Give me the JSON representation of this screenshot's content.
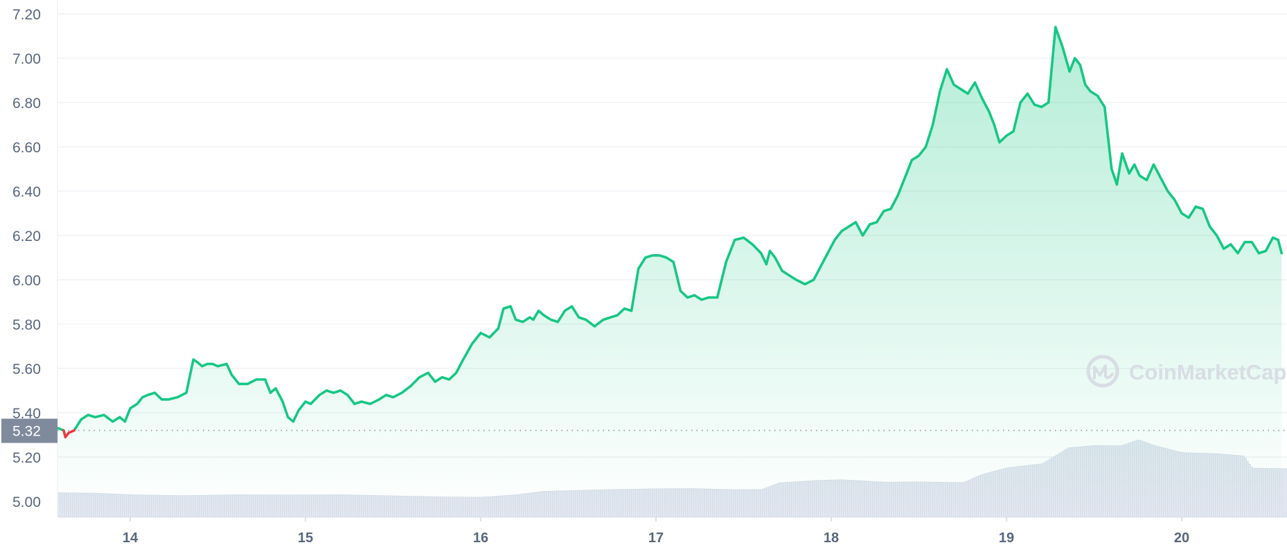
{
  "watermark": {
    "text": "CoinMarketCap",
    "icon": "coinmarketcap-logo-icon"
  },
  "colors": {
    "up": "#16c784",
    "down": "#ea3943",
    "area_top": "#16c784",
    "grid": "#eff2f5",
    "axis_text": "#58667e",
    "volume": "#e7ebf3"
  },
  "chart_data": {
    "type": "area",
    "ylim": [
      4.95,
      7.25
    ],
    "y_ticks": [
      "5.00",
      "5.20",
      "5.40",
      "5.60",
      "5.80",
      "6.00",
      "6.20",
      "6.40",
      "6.60",
      "6.80",
      "7.00",
      "7.20"
    ],
    "y_tick_values": [
      5.0,
      5.2,
      5.4,
      5.6,
      5.8,
      6.0,
      6.2,
      6.4,
      6.6,
      6.8,
      7.0,
      7.2
    ],
    "x_ticks": [
      "14",
      "15",
      "16",
      "17",
      "18",
      "19",
      "20"
    ],
    "x_tick_values": [
      14,
      15,
      16,
      17,
      18,
      19,
      20
    ],
    "xlim": [
      13.59,
      20.57
    ],
    "baseline": {
      "value": 5.32,
      "label": "5.32"
    },
    "grid": true,
    "series": [
      {
        "kind": "price",
        "x": [
          13.59,
          13.62,
          13.63,
          13.65,
          13.68,
          13.72,
          13.76,
          13.8,
          13.85,
          13.9,
          13.94,
          13.97,
          14.0,
          14.04,
          14.07,
          14.1,
          14.14,
          14.18,
          14.22,
          14.27,
          14.32,
          14.36,
          14.38,
          14.41,
          14.44,
          14.47,
          14.5,
          14.55,
          14.58,
          14.62,
          14.67,
          14.72,
          14.77,
          14.8,
          14.83,
          14.87,
          14.9,
          14.93,
          14.96,
          15.0,
          15.03,
          15.08,
          15.12,
          15.16,
          15.2,
          15.24,
          15.28,
          15.32,
          15.37,
          15.42,
          15.46,
          15.5,
          15.55,
          15.6,
          15.65,
          15.7,
          15.74,
          15.78,
          15.82,
          15.86,
          15.9,
          15.95,
          16.0,
          16.05,
          16.1,
          16.13,
          16.17,
          16.2,
          16.24,
          16.28,
          16.3,
          16.33,
          16.36,
          16.4,
          16.44,
          16.48,
          16.52,
          16.56,
          16.6,
          16.65,
          16.7,
          16.74,
          16.78,
          16.82,
          16.86,
          16.9,
          16.94,
          16.98,
          17.02,
          17.06,
          17.1,
          17.14,
          17.18,
          17.22,
          17.26,
          17.3,
          17.35,
          17.4,
          17.45,
          17.5,
          17.55,
          17.6,
          17.63,
          17.65,
          17.68,
          17.72,
          17.76,
          17.8,
          17.85,
          17.9,
          17.94,
          17.98,
          18.02,
          18.06,
          18.1,
          18.14,
          18.18,
          18.22,
          18.26,
          18.3,
          18.34,
          18.38,
          18.42,
          18.46,
          18.5,
          18.54,
          18.58,
          18.62,
          18.66,
          18.7,
          18.74,
          18.78,
          18.82,
          18.86,
          18.9,
          18.93,
          18.96,
          19.0,
          19.04,
          19.08,
          19.12,
          19.16,
          19.2,
          19.24,
          19.28,
          19.32,
          19.36,
          19.39,
          19.42,
          19.45,
          19.48,
          19.52,
          19.56,
          19.6,
          19.63,
          19.66,
          19.7,
          19.73,
          19.76,
          19.8,
          19.84,
          19.88,
          19.92,
          19.96,
          20.0,
          20.04,
          20.08,
          20.12,
          20.16,
          20.2,
          20.24,
          20.28,
          20.32,
          20.36,
          20.4,
          20.44,
          20.48,
          20.52,
          20.55,
          20.57
        ],
        "values": [
          5.33,
          5.32,
          5.29,
          5.31,
          5.32,
          5.37,
          5.39,
          5.38,
          5.39,
          5.36,
          5.38,
          5.36,
          5.42,
          5.44,
          5.47,
          5.48,
          5.49,
          5.46,
          5.46,
          5.47,
          5.49,
          5.64,
          5.63,
          5.61,
          5.62,
          5.62,
          5.61,
          5.62,
          5.57,
          5.53,
          5.53,
          5.55,
          5.55,
          5.49,
          5.51,
          5.45,
          5.38,
          5.36,
          5.41,
          5.45,
          5.44,
          5.48,
          5.5,
          5.49,
          5.5,
          5.48,
          5.44,
          5.45,
          5.44,
          5.46,
          5.48,
          5.47,
          5.49,
          5.52,
          5.56,
          5.58,
          5.54,
          5.56,
          5.55,
          5.58,
          5.64,
          5.71,
          5.76,
          5.74,
          5.78,
          5.87,
          5.88,
          5.82,
          5.81,
          5.83,
          5.82,
          5.86,
          5.84,
          5.82,
          5.81,
          5.86,
          5.88,
          5.83,
          5.82,
          5.79,
          5.82,
          5.83,
          5.84,
          5.87,
          5.86,
          6.05,
          6.1,
          6.11,
          6.11,
          6.1,
          6.08,
          5.95,
          5.92,
          5.93,
          5.91,
          5.92,
          5.92,
          6.08,
          6.18,
          6.19,
          6.16,
          6.12,
          6.07,
          6.13,
          6.1,
          6.04,
          6.02,
          6.0,
          5.98,
          6.0,
          6.06,
          6.12,
          6.18,
          6.22,
          6.24,
          6.26,
          6.2,
          6.25,
          6.26,
          6.31,
          6.32,
          6.38,
          6.46,
          6.54,
          6.56,
          6.6,
          6.7,
          6.85,
          6.95,
          6.88,
          6.86,
          6.84,
          6.89,
          6.82,
          6.76,
          6.7,
          6.62,
          6.65,
          6.67,
          6.8,
          6.84,
          6.79,
          6.78,
          6.8,
          7.14,
          7.05,
          6.94,
          7.0,
          6.97,
          6.88,
          6.85,
          6.83,
          6.78,
          6.5,
          6.43,
          6.57,
          6.48,
          6.52,
          6.47,
          6.45,
          6.52,
          6.46,
          6.4,
          6.36,
          6.3,
          6.28,
          6.33,
          6.32,
          6.24,
          6.2,
          6.14,
          6.16,
          6.12,
          6.17,
          6.17,
          6.12,
          6.13,
          6.19,
          6.18,
          6.12
        ],
        "values_note_excluded": true
      },
      {
        "kind": "volume",
        "x": [
          13.59,
          13.8,
          14.0,
          14.3,
          14.6,
          14.9,
          15.2,
          15.5,
          15.8,
          16.0,
          16.2,
          16.35,
          16.7,
          17.0,
          17.2,
          17.45,
          17.6,
          17.7,
          17.9,
          18.05,
          18.3,
          18.5,
          18.75,
          18.85,
          19.0,
          19.2,
          19.35,
          19.5,
          19.65,
          19.75,
          19.85,
          20.0,
          20.2,
          20.35,
          20.4,
          20.57
        ],
        "values": [
          5.039,
          5.037,
          5.03,
          5.026,
          5.03,
          5.029,
          5.03,
          5.025,
          5.02,
          5.019,
          5.03,
          5.045,
          5.053,
          5.057,
          5.058,
          5.053,
          5.054,
          5.084,
          5.094,
          5.098,
          5.087,
          5.088,
          5.085,
          5.12,
          5.152,
          5.17,
          5.242,
          5.252,
          5.251,
          5.278,
          5.25,
          5.22,
          5.215,
          5.205,
          5.15,
          5.148
        ]
      }
    ]
  }
}
